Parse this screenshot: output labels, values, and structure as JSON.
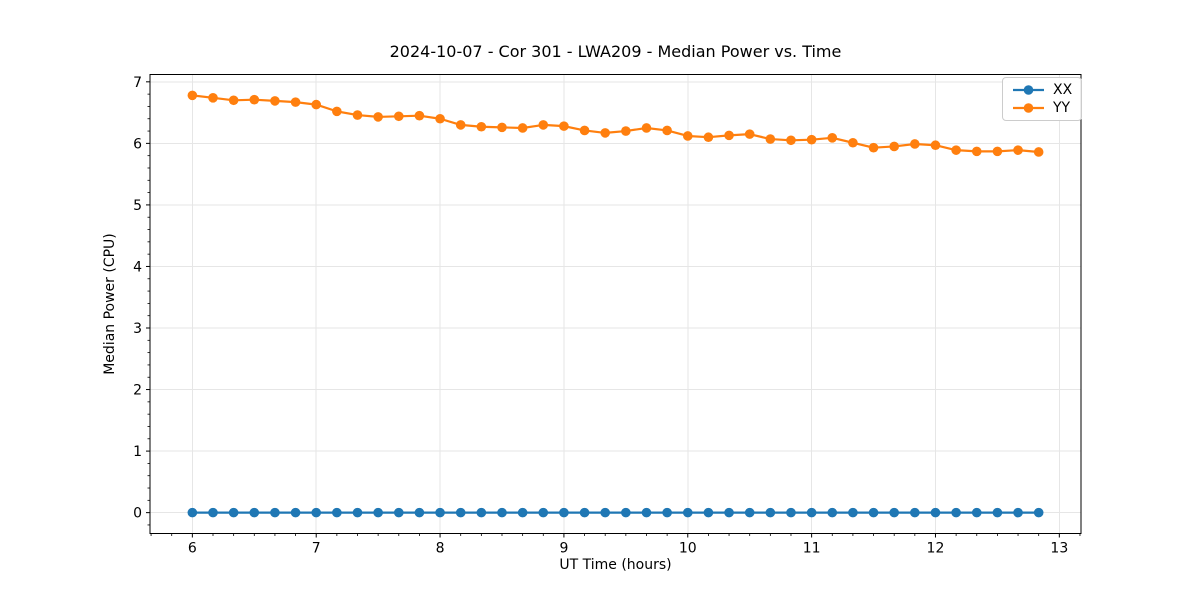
{
  "chart_data": {
    "type": "line",
    "title": "2024-10-07 - Cor 301 - LWA209 - Median Power vs. Time",
    "xlabel": "UT Time (hours)",
    "ylabel": "Median Power (CPU)",
    "xlim": [
      5.658,
      13.175
    ],
    "ylim": [
      -0.339,
      7.119
    ],
    "x_ticks": [
      6,
      7,
      8,
      9,
      10,
      11,
      12,
      13
    ],
    "y_ticks": [
      0,
      1,
      2,
      3,
      4,
      5,
      6,
      7
    ],
    "x_minor_step": 0.166667,
    "y_minor_step": 0.2,
    "grid": "major",
    "grid_color": "#e6e6e6",
    "legend_position": "upper right",
    "marker": "circle",
    "x": [
      6,
      6.1667,
      6.3333,
      6.5,
      6.6667,
      6.8333,
      7,
      7.1667,
      7.3333,
      7.5,
      7.6667,
      7.8333,
      8,
      8.1667,
      8.3333,
      8.5,
      8.6667,
      8.8333,
      9,
      9.1667,
      9.3333,
      9.5,
      9.6667,
      9.8333,
      10,
      10.1667,
      10.3333,
      10.5,
      10.6667,
      10.8333,
      11,
      11.1667,
      11.3333,
      11.5,
      11.6667,
      11.8333,
      12,
      12.1667,
      12.3333,
      12.5,
      12.6667,
      12.8333
    ],
    "series": [
      {
        "name": "XX",
        "color": "#1f77b4",
        "values": [
          0,
          0,
          0,
          0,
          0,
          0,
          0,
          0,
          0,
          0,
          0,
          0,
          0,
          0,
          0,
          0,
          0,
          0,
          0,
          0,
          0,
          0,
          0,
          0,
          0,
          0,
          0,
          0,
          0,
          0,
          0,
          0,
          0,
          0,
          0,
          0,
          0,
          0,
          0,
          0,
          0,
          0
        ]
      },
      {
        "name": "YY",
        "color": "#ff7f0e",
        "values": [
          6.78,
          6.74,
          6.7,
          6.71,
          6.69,
          6.67,
          6.63,
          6.52,
          6.46,
          6.43,
          6.44,
          6.45,
          6.4,
          6.3,
          6.27,
          6.26,
          6.25,
          6.3,
          6.28,
          6.21,
          6.17,
          6.2,
          6.25,
          6.21,
          6.12,
          6.1,
          6.13,
          6.15,
          6.07,
          6.05,
          6.06,
          6.09,
          6.01,
          5.93,
          5.95,
          5.99,
          5.97,
          5.89,
          5.87,
          5.87,
          5.89,
          5.86
        ]
      }
    ]
  }
}
